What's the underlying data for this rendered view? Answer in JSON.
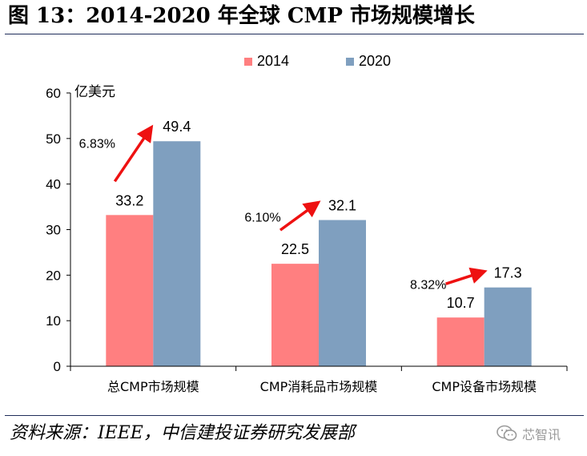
{
  "header": {
    "title": "图 13：2014-2020 年全球 CMP 市场规模增长"
  },
  "footer": {
    "source": "资料来源：IEEE，中信建投证券研究发展部",
    "watermark": "芯智讯"
  },
  "colors": {
    "series_2014": "#ff7f80",
    "series_2020": "#7f9fbf",
    "arrow": "#ee1111",
    "axis": "#000000"
  },
  "chart_data": {
    "type": "bar",
    "title": "",
    "ylabel": "亿美元",
    "xlabel": "",
    "ylim": [
      0,
      60
    ],
    "yticks": [
      0,
      10,
      20,
      30,
      40,
      50,
      60
    ],
    "categories": [
      "总CMP市场规模",
      "CMP消耗品市场规模",
      "CMP设备市场规模"
    ],
    "series": [
      {
        "name": "2014",
        "values": [
          33.2,
          22.5,
          10.7
        ]
      },
      {
        "name": "2020",
        "values": [
          49.4,
          32.1,
          17.3
        ]
      }
    ],
    "annotations": [
      "6.83%",
      "6.10%",
      "8.32%"
    ],
    "legend_position": "top"
  }
}
